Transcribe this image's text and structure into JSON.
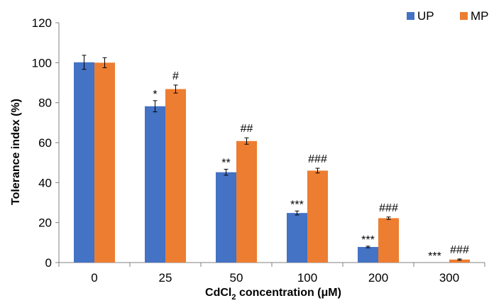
{
  "chart_data": {
    "type": "bar",
    "xlabel_main": "CdCl",
    "xlabel_sub": "2",
    "xlabel_rest": " concentration (μM)",
    "ylabel": "Tolerance index (%)",
    "ylim": [
      0,
      120
    ],
    "yticks": [
      "0",
      "20",
      "40",
      "60",
      "80",
      "100",
      "120"
    ],
    "categories": [
      "0",
      "25",
      "50",
      "100",
      "200",
      "300"
    ],
    "legend_position": "top-right",
    "series": [
      {
        "name": "UP",
        "color": "#4472c4",
        "values": [
          100.2,
          78.2,
          45.2,
          24.8,
          7.8,
          0
        ],
        "errors": [
          3.5,
          2.8,
          1.5,
          1.0,
          0.4,
          0
        ],
        "significance": [
          "",
          "*",
          "**",
          "***",
          "***",
          "***"
        ]
      },
      {
        "name": "MP",
        "color": "#ed7d31",
        "values": [
          100,
          86.8,
          60.8,
          46.0,
          22.2,
          1.5
        ],
        "errors": [
          2.5,
          2.0,
          1.6,
          1.2,
          0.6,
          0.3
        ],
        "significance": [
          "",
          "#",
          "##",
          "###",
          "###",
          "###"
        ]
      }
    ]
  }
}
